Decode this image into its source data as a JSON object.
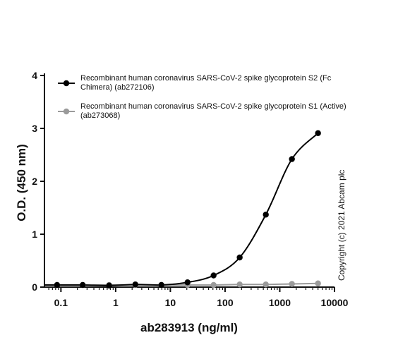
{
  "chart_data": {
    "type": "line",
    "xscale": "log",
    "xlim": [
      0.05,
      10000
    ],
    "ylim": [
      0,
      4
    ],
    "xlabel": "ab283913 (ng/ml)",
    "ylabel": "O.D. (450 nm)",
    "xticks": [
      0.1,
      1,
      10,
      100,
      1000,
      10000
    ],
    "xtick_labels": [
      "0.1",
      "1",
      "10",
      "100",
      "1000",
      "10000"
    ],
    "yticks": [
      0,
      1,
      2,
      3,
      4
    ],
    "ytick_labels": [
      "0",
      "1",
      "2",
      "3",
      "4"
    ],
    "legend_position": "top-right",
    "series": [
      {
        "name": "Recombinant human coronavirus SARS-CoV-2 spike glycoprotein S2 (Fc Chimera) (ab272106)",
        "legend_lines": [
          "Recombinant human coronavirus SARS-CoV-2 spike glycoprotein S2 (Fc",
          "Chimera) (ab272106)"
        ],
        "color": "#000000",
        "x": [
          0.085,
          0.25,
          0.76,
          2.29,
          6.86,
          20.6,
          61.7,
          185,
          556,
          1667,
          5000
        ],
        "y": [
          0.04,
          0.04,
          0.03,
          0.05,
          0.04,
          0.09,
          0.22,
          0.56,
          1.37,
          2.42,
          2.91
        ]
      },
      {
        "name": "Recombinant human coronavirus SARS-CoV-2 spike glycoprotein S1 (Active) (ab273068)",
        "legend_lines": [
          "Recombinant human coronavirus SARS-CoV-2 spike glycoprotein S1 (Active)",
          "(ab273068)"
        ],
        "color": "#9a9a9a",
        "x": [
          0.085,
          0.25,
          0.76,
          2.29,
          6.86,
          20.6,
          61.7,
          185,
          556,
          1667,
          5000
        ],
        "y": [
          0.04,
          0.04,
          0.04,
          0.04,
          0.04,
          0.04,
          0.04,
          0.05,
          0.05,
          0.06,
          0.07
        ]
      }
    ]
  },
  "copyright": "Copyright (c) 2021 Abcam plc"
}
